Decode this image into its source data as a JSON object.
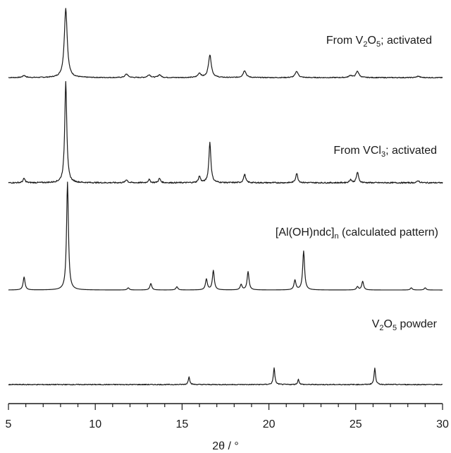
{
  "chart_data": {
    "type": "line",
    "title": "",
    "xlabel": "2θ / °",
    "ylabel": "",
    "xlim": [
      5,
      30
    ],
    "x_ticks": [
      "5",
      "10",
      "15",
      "20",
      "25",
      "30"
    ],
    "grid": false,
    "legend": "none (each pattern labelled directly)",
    "line_color": "#1a1a1a",
    "series": [
      {
        "name": "From V2O5; activated",
        "label_main": "From V",
        "label_sub1": "2",
        "label_mid": "O",
        "label_sub2": "5",
        "label_tail": "; activated",
        "peaks": [
          {
            "x": 5.9,
            "h": 0.03
          },
          {
            "x": 8.3,
            "h": 0.98
          },
          {
            "x": 11.8,
            "h": 0.05
          },
          {
            "x": 13.1,
            "h": 0.04
          },
          {
            "x": 13.7,
            "h": 0.04
          },
          {
            "x": 16.0,
            "h": 0.06
          },
          {
            "x": 16.6,
            "h": 0.32
          },
          {
            "x": 18.6,
            "h": 0.1
          },
          {
            "x": 21.6,
            "h": 0.09
          },
          {
            "x": 24.7,
            "h": 0.03
          },
          {
            "x": 25.1,
            "h": 0.09
          },
          {
            "x": 28.6,
            "h": 0.02
          }
        ]
      },
      {
        "name": "From VCl3; activated",
        "label_main": "From VCl",
        "label_sub1": "3",
        "label_tail": "; activated",
        "peaks": [
          {
            "x": 5.9,
            "h": 0.04
          },
          {
            "x": 8.3,
            "h": 0.96
          },
          {
            "x": 11.8,
            "h": 0.03
          },
          {
            "x": 13.1,
            "h": 0.03
          },
          {
            "x": 13.7,
            "h": 0.04
          },
          {
            "x": 16.0,
            "h": 0.06
          },
          {
            "x": 16.6,
            "h": 0.38
          },
          {
            "x": 18.6,
            "h": 0.08
          },
          {
            "x": 21.6,
            "h": 0.09
          },
          {
            "x": 24.7,
            "h": 0.03
          },
          {
            "x": 25.1,
            "h": 0.1
          },
          {
            "x": 28.6,
            "h": 0.02
          }
        ]
      },
      {
        "name": "[Al(OH)ndc]n (calculated pattern)",
        "label_main": "[Al(OH)ndc]",
        "label_sub1": "n",
        "label_tail": " (calculated pattern)",
        "peaks": [
          {
            "x": 5.9,
            "h": 0.12
          },
          {
            "x": 8.4,
            "h": 1.0
          },
          {
            "x": 11.9,
            "h": 0.02
          },
          {
            "x": 13.2,
            "h": 0.06
          },
          {
            "x": 14.7,
            "h": 0.03
          },
          {
            "x": 16.4,
            "h": 0.1
          },
          {
            "x": 16.8,
            "h": 0.18
          },
          {
            "x": 18.4,
            "h": 0.05
          },
          {
            "x": 18.8,
            "h": 0.17
          },
          {
            "x": 21.5,
            "h": 0.09
          },
          {
            "x": 22.0,
            "h": 0.36
          },
          {
            "x": 25.1,
            "h": 0.03
          },
          {
            "x": 25.4,
            "h": 0.08
          },
          {
            "x": 28.2,
            "h": 0.02
          },
          {
            "x": 29.0,
            "h": 0.02
          }
        ]
      },
      {
        "name": "V2O5 powder",
        "label_main": "V",
        "label_sub1": "2",
        "label_mid": "O",
        "label_sub2": "5",
        "label_tail": " powder",
        "peaks": [
          {
            "x": 15.4,
            "h": 0.11
          },
          {
            "x": 20.3,
            "h": 0.23
          },
          {
            "x": 21.7,
            "h": 0.07
          },
          {
            "x": 26.1,
            "h": 0.23
          }
        ]
      }
    ]
  }
}
